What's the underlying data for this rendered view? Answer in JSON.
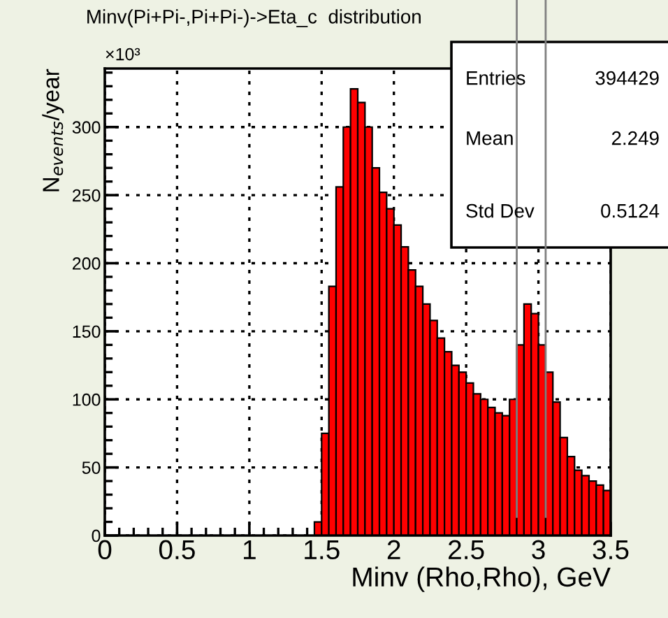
{
  "chart_data": {
    "type": "histogram",
    "title": "Minv(Pi+Pi-,Pi+Pi-)->Eta_c  distribution",
    "xlabel": "Minv (Rho,Rho), GeV",
    "ylabel": "N$_{events}$/year",
    "bins": [
      1.45,
      1.5,
      1.55,
      1.6,
      1.65,
      1.7,
      1.75,
      1.8,
      1.85,
      1.9,
      1.95,
      2.0,
      2.05,
      2.1,
      2.15,
      2.2,
      2.25,
      2.3,
      2.35,
      2.4,
      2.45,
      2.5,
      2.55,
      2.6,
      2.65,
      2.7,
      2.75,
      2.8,
      2.85,
      2.9,
      2.95,
      3.0,
      3.05,
      3.1,
      3.15,
      3.2,
      3.25,
      3.3,
      3.35,
      3.4,
      3.45,
      3.5
    ],
    "values": [
      10,
      75,
      183,
      256,
      300,
      328,
      318,
      300,
      270,
      252,
      240,
      228,
      212,
      195,
      183,
      170,
      158,
      145,
      135,
      125,
      120,
      112,
      104,
      100,
      94,
      90,
      88,
      100,
      140,
      170,
      163,
      140,
      120,
      98,
      72,
      58,
      48,
      44,
      40,
      37,
      33
    ],
    "color": "#ff0000",
    "xlim": [
      0,
      3.5
    ],
    "xticks": [
      0,
      0.5,
      1,
      1.5,
      2,
      2.5,
      3,
      3.5
    ],
    "ylim": [
      0,
      343
    ],
    "yticks": [
      0,
      50,
      100,
      150,
      200,
      250,
      300
    ],
    "grid": true,
    "ref_lines": [
      {
        "axis": "x",
        "value": 2.85,
        "color": "#808080"
      },
      {
        "axis": "x",
        "value": 3.05,
        "color": "#808080"
      }
    ],
    "annotations": [
      "×10³",
      "Entries",
      "394429",
      "Mean",
      "2.249",
      "Std Dev",
      "0.5124"
    ]
  }
}
